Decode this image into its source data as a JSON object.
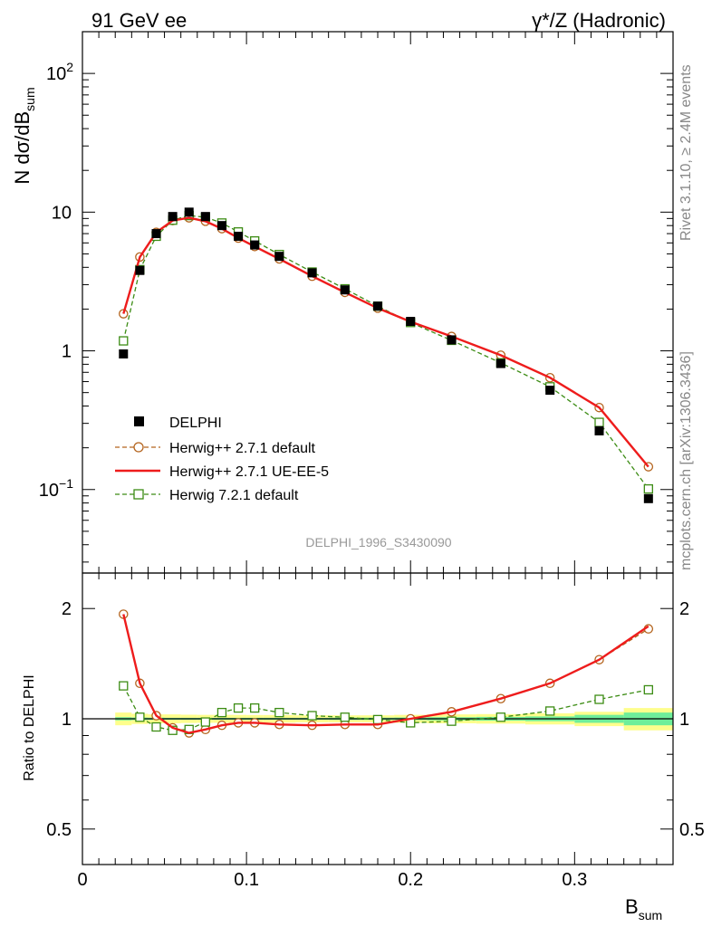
{
  "header": {
    "energy_label": "91 GeV ee",
    "process_label": "γ*/Z (Hadronic)"
  },
  "side": {
    "rivet_label": "Rivet 3.1.10, ≥ 2.4M events",
    "source_label": "mcplots.cern.ch [arXiv:1306.3436]"
  },
  "chart_data": [
    {
      "panel": "main",
      "type": "scatter",
      "yscale": "log",
      "ylabel_main": "N dσ/dB",
      "ylabel_sub": "sum",
      "xlabel_main": "B",
      "xlabel_sub": "sum",
      "xlim": [
        0,
        0.36
      ],
      "ylim": [
        0.025,
        200
      ],
      "grid": false,
      "legend_position": "bottom-left",
      "analysis_label": "DELPHI_1996_S3430090",
      "x_ticks": [
        0,
        0.1,
        0.2,
        0.3
      ],
      "x_tick_labels": [
        "0",
        "0.1",
        "0.2",
        "0.3"
      ],
      "y_ticks": [
        0.1,
        1,
        10,
        100
      ],
      "y_tick_labels": [
        {
          "base": "10",
          "exp": "−1"
        },
        {
          "base": "1",
          "exp": ""
        },
        {
          "base": "10",
          "exp": ""
        },
        {
          "base": "10",
          "exp": "2"
        }
      ],
      "series": [
        {
          "name": "DELPHI",
          "style": "data",
          "color": "#000000",
          "x": [
            0.025,
            0.035,
            0.045,
            0.055,
            0.065,
            0.075,
            0.085,
            0.095,
            0.105,
            0.12,
            0.14,
            0.16,
            0.18,
            0.2,
            0.225,
            0.255,
            0.285,
            0.315,
            0.345
          ],
          "y": [
            0.95,
            3.8,
            7.0,
            9.3,
            10.0,
            9.3,
            8.0,
            6.7,
            5.8,
            4.8,
            3.65,
            2.75,
            2.1,
            1.63,
            1.2,
            0.81,
            0.52,
            0.265,
            0.086
          ]
        },
        {
          "name": "Herwig++ 2.7.1 default",
          "style": "circle-dashed",
          "color": "#b4641e",
          "x": [
            0.025,
            0.035,
            0.045,
            0.055,
            0.065,
            0.075,
            0.085,
            0.095,
            0.105,
            0.12,
            0.14,
            0.16,
            0.18,
            0.2,
            0.225,
            0.255,
            0.285,
            0.315,
            0.345
          ],
          "y": [
            1.85,
            4.75,
            7.15,
            8.7,
            9.1,
            8.6,
            7.6,
            6.5,
            5.65,
            4.6,
            3.45,
            2.64,
            2.03,
            1.62,
            1.27,
            0.93,
            0.64,
            0.39,
            0.146
          ]
        },
        {
          "name": "Herwig++ 2.7.1 UE-EE-5",
          "style": "solid",
          "color": "#ee1c1c",
          "x": [
            0.025,
            0.035,
            0.045,
            0.055,
            0.065,
            0.075,
            0.085,
            0.095,
            0.105,
            0.12,
            0.14,
            0.16,
            0.18,
            0.2,
            0.225,
            0.255,
            0.285,
            0.315,
            0.345
          ],
          "y": [
            1.85,
            4.75,
            7.15,
            8.7,
            9.1,
            8.6,
            7.6,
            6.5,
            5.65,
            4.6,
            3.45,
            2.64,
            2.03,
            1.62,
            1.27,
            0.93,
            0.64,
            0.39,
            0.146
          ]
        },
        {
          "name": "Herwig 7.2.1 default",
          "style": "square-dashed",
          "color": "#3c8c14",
          "x": [
            0.025,
            0.035,
            0.045,
            0.055,
            0.065,
            0.075,
            0.085,
            0.095,
            0.105,
            0.12,
            0.14,
            0.16,
            0.18,
            0.2,
            0.225,
            0.255,
            0.285,
            0.315,
            0.345
          ],
          "y": [
            1.18,
            3.85,
            6.7,
            8.75,
            9.45,
            9.2,
            8.35,
            7.2,
            6.2,
            4.95,
            3.7,
            2.8,
            2.1,
            1.6,
            1.19,
            0.82,
            0.55,
            0.305,
            0.101
          ]
        }
      ]
    },
    {
      "panel": "ratio",
      "type": "line",
      "yscale": "log",
      "ylabel": "Ratio to DELPHI",
      "xlim": [
        0,
        0.36
      ],
      "ylim": [
        0.4,
        2.5
      ],
      "grid": false,
      "y_ticks": [
        0.5,
        1,
        2
      ],
      "y_tick_labels": [
        "0.5",
        "1",
        "2"
      ],
      "bands": [
        {
          "name": "stat",
          "color": "#6fee9a",
          "xedges": [
            0.02,
            0.03,
            0.04,
            0.05,
            0.06,
            0.07,
            0.08,
            0.09,
            0.1,
            0.11,
            0.13,
            0.15,
            0.17,
            0.19,
            0.21,
            0.24,
            0.27,
            0.3,
            0.33,
            0.36
          ],
          "lo": [
            0.99,
            0.992,
            0.993,
            0.994,
            0.994,
            0.994,
            0.994,
            0.994,
            0.994,
            0.994,
            0.994,
            0.993,
            0.993,
            0.992,
            0.99,
            0.988,
            0.985,
            0.975,
            0.96
          ],
          "hi": [
            1.01,
            1.008,
            1.007,
            1.006,
            1.006,
            1.006,
            1.006,
            1.006,
            1.006,
            1.006,
            1.006,
            1.007,
            1.007,
            1.008,
            1.01,
            1.012,
            1.015,
            1.025,
            1.04
          ]
        },
        {
          "name": "total",
          "color": "#fefe8c",
          "xedges": [
            0.02,
            0.03,
            0.04,
            0.05,
            0.06,
            0.07,
            0.08,
            0.09,
            0.1,
            0.11,
            0.13,
            0.15,
            0.17,
            0.19,
            0.21,
            0.24,
            0.27,
            0.3,
            0.33,
            0.36
          ],
          "lo": [
            0.96,
            0.968,
            0.972,
            0.972,
            0.974,
            0.975,
            0.975,
            0.975,
            0.976,
            0.976,
            0.978,
            0.978,
            0.978,
            0.975,
            0.972,
            0.97,
            0.965,
            0.955,
            0.93
          ],
          "hi": [
            1.04,
            1.032,
            1.028,
            1.028,
            1.026,
            1.025,
            1.025,
            1.025,
            1.024,
            1.024,
            1.022,
            1.022,
            1.022,
            1.025,
            1.028,
            1.03,
            1.035,
            1.045,
            1.07
          ]
        }
      ],
      "series": [
        {
          "name": "Herwig++ 2.7.1 default",
          "style": "circle-dashed",
          "color": "#b4641e",
          "x": [
            0.025,
            0.035,
            0.045,
            0.055,
            0.065,
            0.075,
            0.085,
            0.095,
            0.105,
            0.12,
            0.14,
            0.16,
            0.18,
            0.2,
            0.225,
            0.255,
            0.285,
            0.315,
            0.345
          ],
          "y": [
            1.93,
            1.25,
            1.02,
            0.945,
            0.915,
            0.935,
            0.96,
            0.975,
            0.975,
            0.965,
            0.96,
            0.965,
            0.965,
            1.0,
            1.045,
            1.135,
            1.25,
            1.45,
            1.76
          ]
        },
        {
          "name": "Herwig++ 2.7.1 UE-EE-5",
          "style": "solid",
          "color": "#ee1c1c",
          "x": [
            0.025,
            0.035,
            0.045,
            0.055,
            0.065,
            0.075,
            0.085,
            0.095,
            0.105,
            0.12,
            0.14,
            0.16,
            0.18,
            0.2,
            0.225,
            0.255,
            0.285,
            0.315,
            0.345
          ],
          "y": [
            1.93,
            1.25,
            1.02,
            0.945,
            0.915,
            0.935,
            0.96,
            0.975,
            0.975,
            0.965,
            0.96,
            0.965,
            0.965,
            1.0,
            1.045,
            1.135,
            1.25,
            1.45,
            1.79
          ]
        },
        {
          "name": "Herwig 7.2.1 default",
          "style": "square-dashed",
          "color": "#3c8c14",
          "x": [
            0.025,
            0.035,
            0.045,
            0.055,
            0.065,
            0.075,
            0.085,
            0.095,
            0.105,
            0.12,
            0.14,
            0.16,
            0.18,
            0.2,
            0.225,
            0.255,
            0.285,
            0.315,
            0.345
          ],
          "y": [
            1.23,
            1.01,
            0.95,
            0.93,
            0.935,
            0.98,
            1.04,
            1.07,
            1.07,
            1.04,
            1.02,
            1.01,
            0.995,
            0.975,
            0.985,
            1.01,
            1.05,
            1.13,
            1.2
          ]
        }
      ]
    }
  ]
}
